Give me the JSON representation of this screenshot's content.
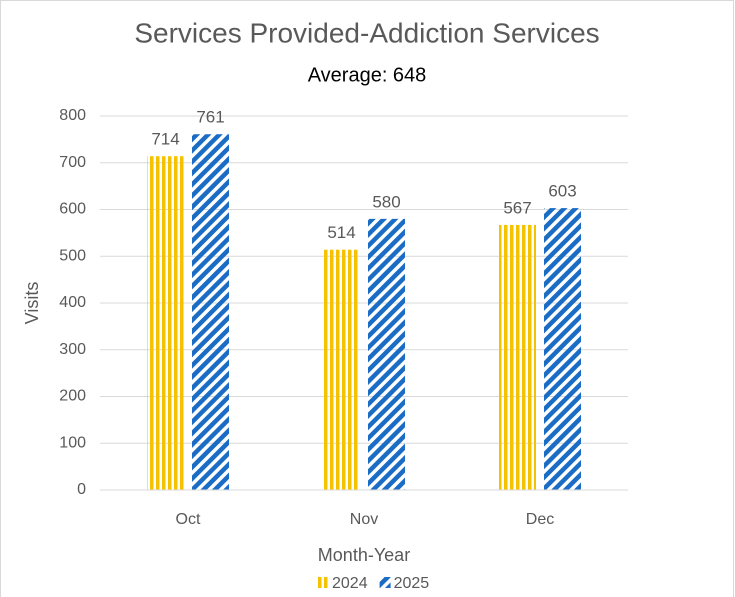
{
  "chart_data": {
    "type": "bar",
    "title": "Services Provided-Addiction Services",
    "subtitle": "Average: 648",
    "x_label": "Month-Year",
    "y_label": "Visits",
    "categories": [
      "Oct",
      "Nov",
      "Dec"
    ],
    "series": [
      {
        "name": "2024",
        "color": "#f5c200",
        "pattern": "vertical-stripes",
        "values": [
          714,
          514,
          567
        ]
      },
      {
        "name": "2025",
        "color": "#1a6cc4",
        "pattern": "diagonal-stripes",
        "values": [
          761,
          580,
          603
        ]
      }
    ],
    "ylim": [
      0,
      800
    ],
    "yticks": [
      0,
      100,
      200,
      300,
      400,
      500,
      600,
      700,
      800
    ],
    "grid": true,
    "legend": "bottom"
  }
}
